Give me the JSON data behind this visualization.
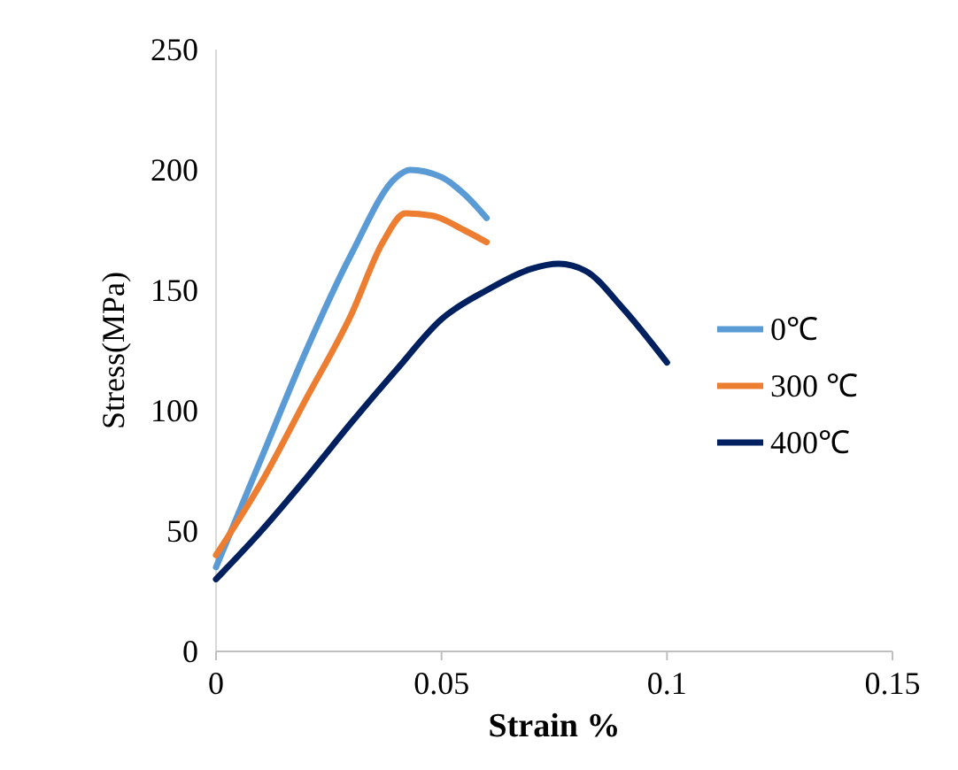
{
  "chart_data": {
    "type": "line",
    "xlabel": "Strain %",
    "ylabel": "Stress(MPa)",
    "xlim": [
      0,
      0.15
    ],
    "xticks": [
      0,
      0.05,
      0.1,
      0.15
    ],
    "ylim": [
      0,
      250
    ],
    "yticks": [
      0,
      50,
      100,
      150,
      200,
      250
    ],
    "legend": "right",
    "marker": "none",
    "line_style": "solid",
    "grid": false,
    "series": [
      {
        "name": "0℃",
        "color": "#5b9bd5",
        "x": [
          0,
          0.01,
          0.02,
          0.03,
          0.04,
          0.043,
          0.05,
          0.055,
          0.06
        ],
        "values": [
          35,
          80,
          125,
          165,
          197,
          200,
          197,
          190,
          180
        ]
      },
      {
        "name": "300 ℃",
        "color": "#ed7d31",
        "x": [
          0,
          0.01,
          0.02,
          0.03,
          0.037,
          0.042,
          0.048,
          0.055,
          0.06
        ],
        "values": [
          40,
          70,
          105,
          140,
          170,
          182,
          181,
          175,
          170
        ]
      },
      {
        "name": "400℃",
        "color": "#002060",
        "x": [
          0,
          0.01,
          0.02,
          0.03,
          0.04,
          0.05,
          0.06,
          0.07,
          0.076,
          0.082,
          0.09,
          0.1
        ],
        "values": [
          30,
          50,
          72,
          95,
          117,
          138,
          150,
          159,
          161,
          158,
          143,
          120
        ]
      }
    ]
  }
}
